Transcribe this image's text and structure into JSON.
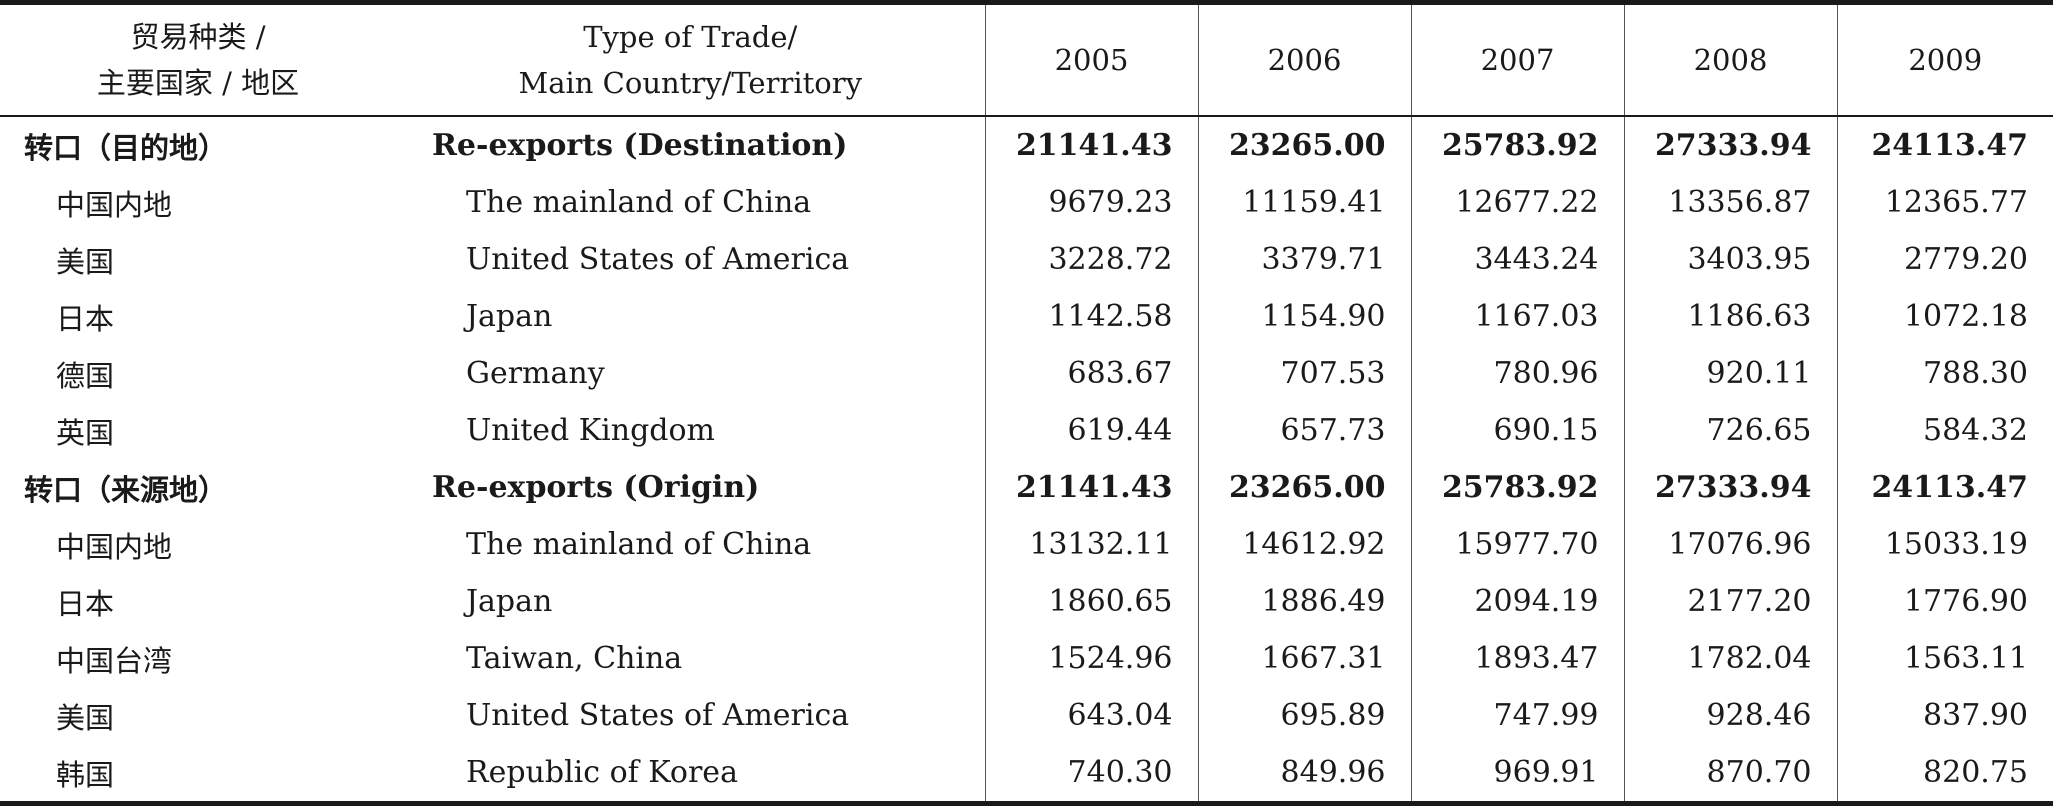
{
  "header": {
    "cn_line1": "贸易种类 /",
    "cn_line2": "主要国家 / 地区",
    "en_line1": "Type of Trade/",
    "en_line2": "Main Country/Territory",
    "years": [
      "2005",
      "2006",
      "2007",
      "2008",
      "2009"
    ]
  },
  "rows": [
    {
      "cn": "转口（目的地）",
      "en": "Re-exports (Destination)",
      "values": [
        "21141.43",
        "23265.00",
        "25783.92",
        "27333.94",
        "24113.47"
      ],
      "group": true
    },
    {
      "cn": "中国内地",
      "en": "The mainland of China",
      "values": [
        "9679.23",
        "11159.41",
        "12677.22",
        "13356.87",
        "12365.77"
      ]
    },
    {
      "cn": "美国",
      "en": "United States of America",
      "values": [
        "3228.72",
        "3379.71",
        "3443.24",
        "3403.95",
        "2779.20"
      ]
    },
    {
      "cn": "日本",
      "en": "Japan",
      "values": [
        "1142.58",
        "1154.90",
        "1167.03",
        "1186.63",
        "1072.18"
      ]
    },
    {
      "cn": "德国",
      "en": "Germany",
      "values": [
        "683.67",
        "707.53",
        "780.96",
        "920.11",
        "788.30"
      ]
    },
    {
      "cn": "英国",
      "en": "United Kingdom",
      "values": [
        "619.44",
        "657.73",
        "690.15",
        "726.65",
        "584.32"
      ]
    },
    {
      "cn": "转口（来源地）",
      "en": "Re-exports (Origin)",
      "values": [
        "21141.43",
        "23265.00",
        "25783.92",
        "27333.94",
        "24113.47"
      ],
      "group": true
    },
    {
      "cn": "中国内地",
      "en": "The mainland of China",
      "values": [
        "13132.11",
        "14612.92",
        "15977.70",
        "17076.96",
        "15033.19"
      ]
    },
    {
      "cn": "日本",
      "en": "Japan",
      "values": [
        "1860.65",
        "1886.49",
        "2094.19",
        "2177.20",
        "1776.90"
      ]
    },
    {
      "cn": "中国台湾",
      "en": "Taiwan, China",
      "values": [
        "1524.96",
        "1667.31",
        "1893.47",
        "1782.04",
        "1563.11"
      ]
    },
    {
      "cn": "美国",
      "en": "United States of America",
      "values": [
        "643.04",
        "695.89",
        "747.99",
        "928.46",
        "837.90"
      ]
    },
    {
      "cn": "韩国",
      "en": "Republic of Korea",
      "values": [
        "740.30",
        "849.96",
        "969.91",
        "870.70",
        "820.75"
      ]
    }
  ]
}
